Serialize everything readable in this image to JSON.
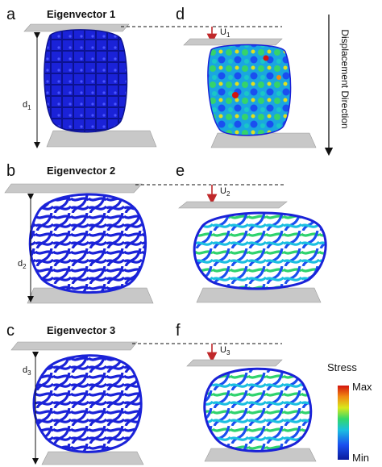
{
  "panels": {
    "a": {
      "letter": "a",
      "title": "Eigenvector 1",
      "dim_label": "d",
      "dim_sub": "1"
    },
    "b": {
      "letter": "b",
      "title": "Eigenvector 2",
      "dim_label": "d",
      "dim_sub": "2"
    },
    "c": {
      "letter": "c",
      "title": "Eigenvector 3",
      "dim_label": "d",
      "dim_sub": "3"
    },
    "d": {
      "letter": "d",
      "disp_label": "U",
      "disp_sub": "1"
    },
    "e": {
      "letter": "e",
      "disp_label": "U",
      "disp_sub": "2"
    },
    "f": {
      "letter": "f",
      "disp_label": "U",
      "disp_sub": "3"
    }
  },
  "side_arrow_label": "Displacement Direction",
  "legend": {
    "title": "Stress",
    "max_label": "Max",
    "min_label": "Min"
  },
  "colors": {
    "plate": "#c8c8c8",
    "plate_dark": "#9a9a9a",
    "arrow_red": "#c0282a",
    "mesh_blue": "#1a22d8",
    "mesh_blue_dark": "#0c1290",
    "dashed": "#111111"
  }
}
